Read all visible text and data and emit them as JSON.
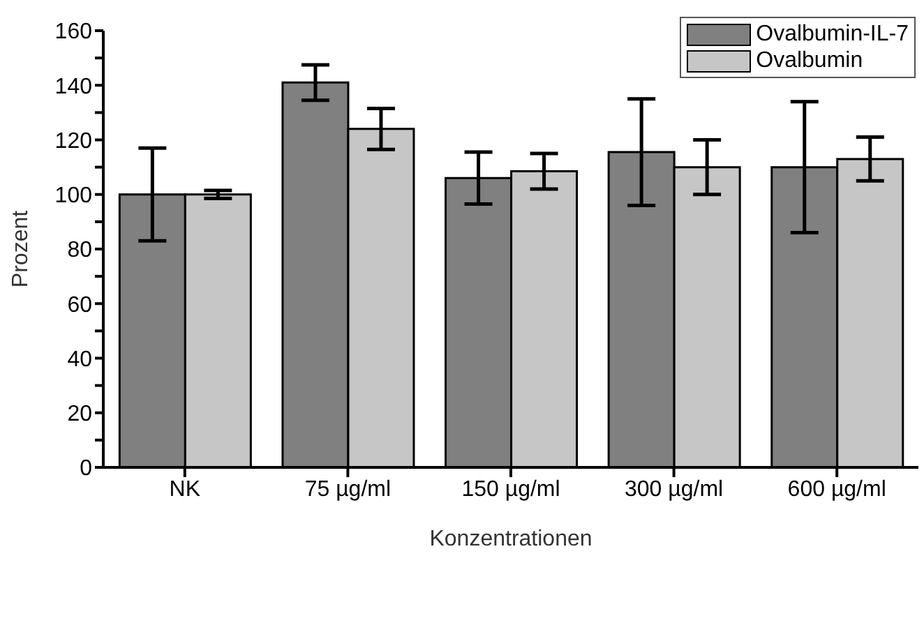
{
  "chart_data": {
    "type": "bar",
    "xlabel": "Konzentrationen",
    "ylabel": "Prozent",
    "categories": [
      "NK",
      "75 µg/ml",
      "150 µg/ml",
      "300 µg/ml",
      "600 µg/ml"
    ],
    "series": [
      {
        "name": "Ovalbumin-IL-7",
        "color": "#808080",
        "values": [
          100,
          141,
          106,
          115.5,
          110
        ],
        "errors": [
          17,
          6.5,
          9.5,
          19.5,
          24
        ]
      },
      {
        "name": "Ovalbumin",
        "color": "#c6c6c6",
        "values": [
          100,
          124,
          108.5,
          110,
          113
        ],
        "errors": [
          1.5,
          7.5,
          6.5,
          10,
          8
        ]
      }
    ],
    "ylim": [
      0,
      160
    ],
    "yticks": [
      0,
      {
        "value": 10,
        "label": null
      },
      20,
      {
        "value": 30,
        "label": null
      },
      40,
      {
        "value": 50,
        "label": null
      },
      60,
      {
        "value": 70,
        "label": null
      },
      80,
      {
        "value": 90,
        "label": null
      },
      100,
      {
        "value": 110,
        "label": null
      },
      120,
      {
        "value": 130,
        "label": null
      },
      140,
      {
        "value": 150,
        "label": null
      },
      160
    ],
    "legend": "top right",
    "grid": false
  }
}
